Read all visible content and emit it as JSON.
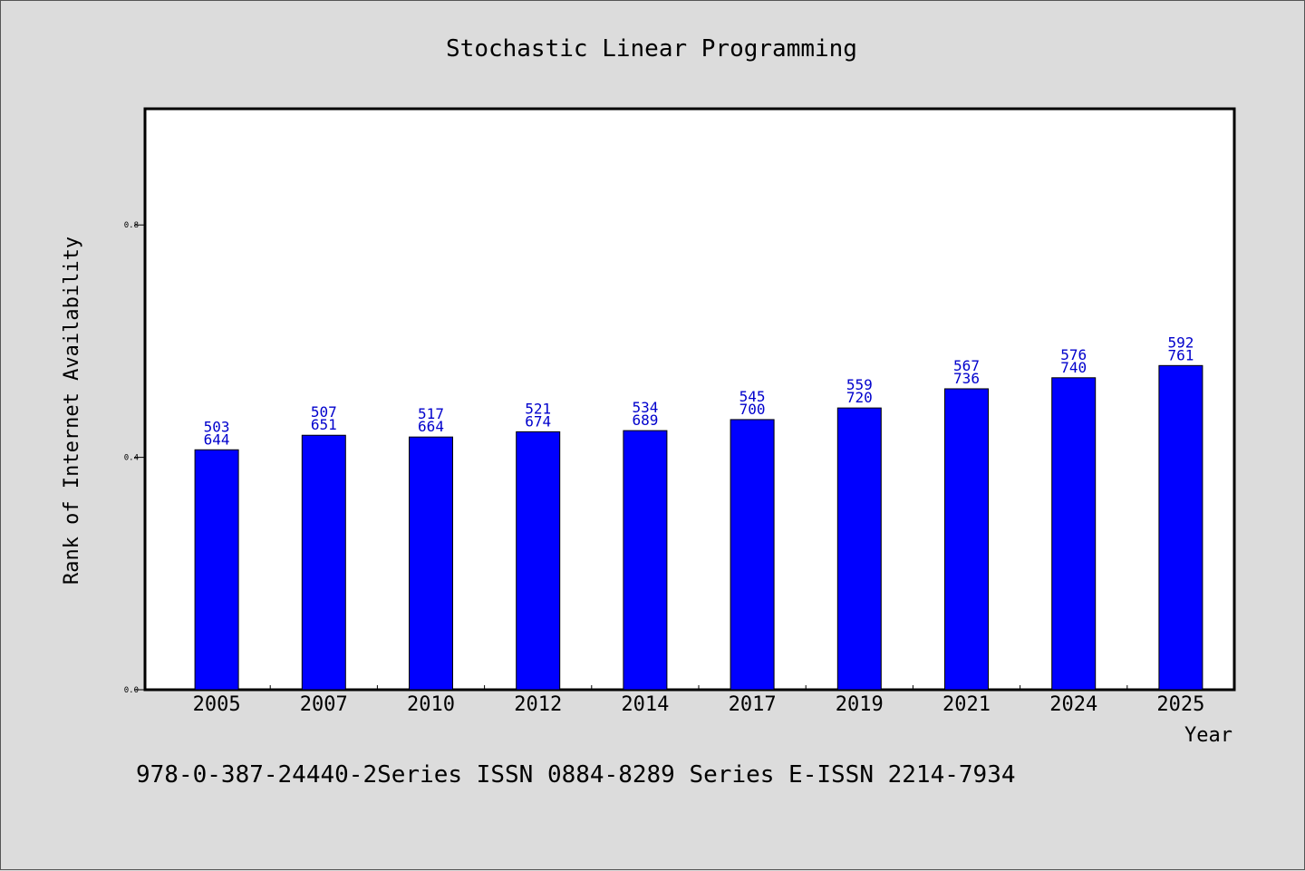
{
  "chart_data": {
    "type": "bar",
    "title": "Stochastic Linear Programming",
    "xlabel": "Year",
    "ylabel": "Rank of Internet Availability",
    "footer": "978-0-387-24440-2Series ISSN 0884-8289 Series E-ISSN 2214-7934",
    "categories": [
      "2005",
      "2007",
      "2010",
      "2012",
      "2014",
      "2017",
      "2019",
      "2021",
      "2024",
      "2025"
    ],
    "values": [
      0.413,
      0.438,
      0.435,
      0.444,
      0.446,
      0.465,
      0.485,
      0.518,
      0.537,
      0.558
    ],
    "labels_top": [
      "503",
      "507",
      "517",
      "521",
      "534",
      "545",
      "559",
      "567",
      "576",
      "592"
    ],
    "labels_bottom": [
      "644",
      "651",
      "664",
      "674",
      "689",
      "700",
      "720",
      "736",
      "740",
      "761"
    ],
    "yticks": [
      0.0,
      0.4,
      0.8
    ],
    "ytick_labels": [
      "0.0",
      "0.4",
      "0.8"
    ],
    "ylim": [
      0.0,
      1.0
    ],
    "grid": false,
    "legend": "none",
    "colors": {
      "bar": "#0000ff",
      "bar_label": "#0000cc",
      "plot_bg": "#ffffff",
      "page_bg": "#dcdcdc",
      "axis": "#000000"
    }
  }
}
